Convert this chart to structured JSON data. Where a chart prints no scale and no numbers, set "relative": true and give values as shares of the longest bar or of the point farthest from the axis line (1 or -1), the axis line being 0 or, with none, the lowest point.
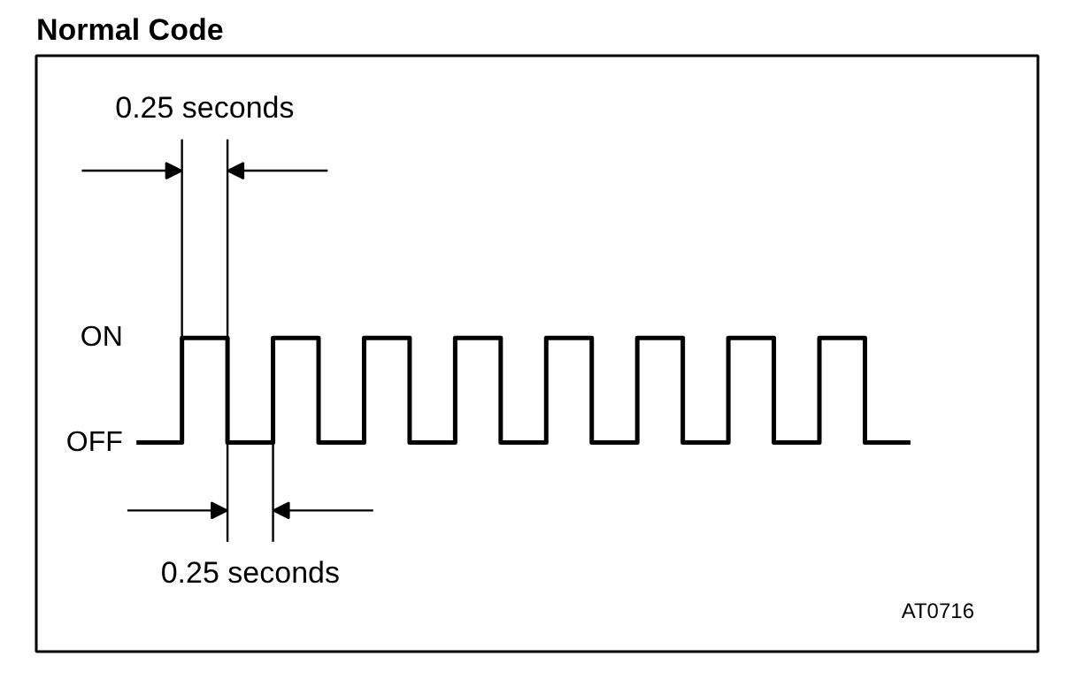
{
  "chart_data": {
    "type": "step",
    "title": "Normal Code",
    "relative": true,
    "categories": [
      null,
      null,
      null,
      null,
      null,
      null,
      null,
      null,
      null,
      null,
      null,
      null,
      null,
      null,
      null,
      null,
      null,
      null
    ],
    "series": [
      {
        "color": "#000000",
        "values": [
          0,
          1,
          0,
          1,
          0,
          1,
          0,
          1,
          0,
          1,
          0,
          1,
          0,
          1,
          0,
          1,
          0,
          0
        ]
      }
    ],
    "marker": "none",
    "line_style": "solid",
    "annotations": [
      "ON",
      "OFF",
      "0.25 seconds",
      "0.25 seconds",
      "AT0716"
    ]
  }
}
